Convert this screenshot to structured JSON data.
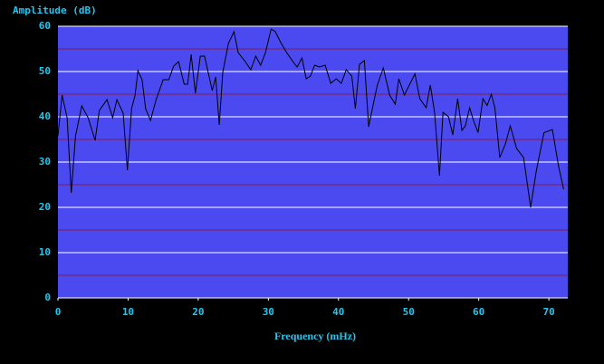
{
  "chart_data": {
    "type": "line",
    "title": "Amplitude (dB)",
    "x_label": "Frequency (mHz)",
    "xlim": [
      0,
      72.7
    ],
    "ylim": [
      0,
      60
    ],
    "xticks": [
      0,
      10,
      20,
      30,
      40,
      50,
      60,
      70
    ],
    "yticks": [
      0,
      10,
      20,
      30,
      40,
      50,
      60
    ],
    "y_minor_ticks": [
      5,
      15,
      25,
      35,
      45,
      55
    ],
    "grid": true,
    "plot_color": "#4a4af0",
    "grid_color": "#ffffff",
    "minor_grid_color": "#8b1a4a",
    "series": [
      {
        "color": "#000000",
        "x": [
          0.0,
          0.6,
          1.3,
          1.9,
          2.5,
          3.4,
          4.3,
          5.3,
          5.9,
          7.0,
          7.8,
          8.4,
          9.3,
          9.9,
          10.5,
          11.0,
          11.4,
          12.0,
          12.5,
          13.2,
          14.0,
          15.0,
          15.8,
          16.5,
          17.2,
          18.0,
          18.5,
          19.0,
          19.6,
          20.3,
          20.9,
          22.0,
          22.5,
          23.0,
          23.5,
          24.3,
          25.1,
          25.7,
          26.7,
          27.5,
          28.2,
          28.9,
          29.6,
          30.4,
          31.0,
          31.7,
          32.6,
          33.6,
          34.1,
          34.8,
          35.4,
          36.0,
          36.6,
          37.3,
          38.1,
          38.9,
          39.7,
          40.4,
          41.1,
          41.9,
          42.4,
          43.0,
          43.7,
          44.3,
          45.5,
          46.4,
          47.3,
          48.1,
          48.6,
          49.4,
          50.1,
          50.9,
          51.6,
          52.5,
          53.1,
          53.7,
          54.4,
          54.9,
          55.7,
          56.3,
          57.0,
          57.6,
          58.1,
          58.7,
          59.3,
          59.9,
          60.6,
          61.2,
          61.8,
          62.3,
          63.0,
          63.8,
          64.5,
          65.4,
          66.4,
          67.4,
          68.2,
          69.3,
          70.5,
          71.4,
          72.1
        ],
        "values": [
          35.8,
          44.8,
          39.8,
          23.2,
          35.8,
          42.4,
          39.8,
          34.8,
          41.4,
          43.8,
          39.8,
          43.8,
          40.8,
          28.2,
          41.8,
          44.8,
          50.2,
          48.2,
          41.8,
          39.2,
          43.8,
          48.2,
          48.2,
          51.2,
          52.2,
          47.2,
          47.2,
          53.8,
          45.2,
          53.4,
          53.4,
          45.8,
          48.8,
          38.2,
          49.8,
          56.2,
          58.8,
          54.2,
          52.2,
          50.4,
          53.4,
          51.4,
          54.2,
          59.4,
          58.8,
          56.6,
          54.2,
          52.0,
          51.0,
          53.0,
          48.4,
          49.0,
          51.4,
          51.0,
          51.4,
          47.4,
          48.4,
          47.4,
          50.4,
          49.0,
          41.8,
          51.6,
          52.4,
          37.8,
          46.8,
          50.8,
          44.8,
          42.8,
          48.4,
          44.8,
          47.0,
          49.5,
          44.0,
          42.0,
          47.0,
          41.0,
          27.0,
          41.0,
          40.0,
          36.0,
          44.0,
          37.0,
          38.0,
          42.0,
          39.0,
          36.5,
          44.0,
          42.5,
          45.0,
          42.0,
          31.0,
          34.0,
          38.0,
          33.0,
          31.0,
          20.0,
          28.0,
          36.5,
          37.2,
          29.0,
          24.0
        ]
      }
    ]
  }
}
